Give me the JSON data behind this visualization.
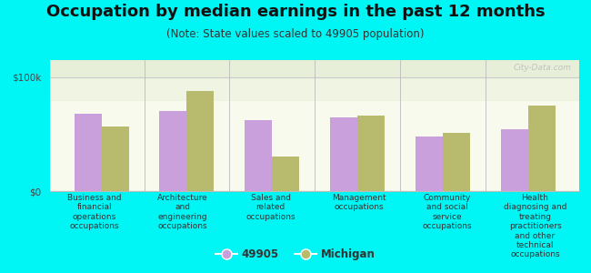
{
  "title": "Occupation by median earnings in the past 12 months",
  "subtitle": "(Note: State values scaled to 49905 population)",
  "categories": [
    "Business and\nfinancial\noperations\noccupations",
    "Architecture\nand\nengineering\noccupations",
    "Sales and\nrelated\noccupations",
    "Management\noccupations",
    "Community\nand social\nservice\noccupations",
    "Health\ndiagnosing and\ntreating\npractitioners\nand other\ntechnical\noccupations"
  ],
  "values_49905": [
    68000,
    70000,
    62000,
    65000,
    48000,
    54000
  ],
  "values_michigan": [
    57000,
    88000,
    30000,
    66000,
    51000,
    75000
  ],
  "color_49905": "#c9a0dc",
  "color_michigan": "#b8ba6e",
  "ylim": [
    0,
    115000
  ],
  "yticks": [
    0,
    100000
  ],
  "ytick_labels": [
    "$0",
    "$100k"
  ],
  "background_color": "#00f5f5",
  "plot_bg_top": "#eef2e0",
  "plot_bg_bottom": "#f8faee",
  "legend_label_49905": "49905",
  "legend_label_michigan": "Michigan",
  "bar_width": 0.32,
  "title_fontsize": 13,
  "subtitle_fontsize": 8.5,
  "tick_fontsize": 7.5,
  "label_fontsize": 6.5,
  "watermark": "City-Data.com"
}
